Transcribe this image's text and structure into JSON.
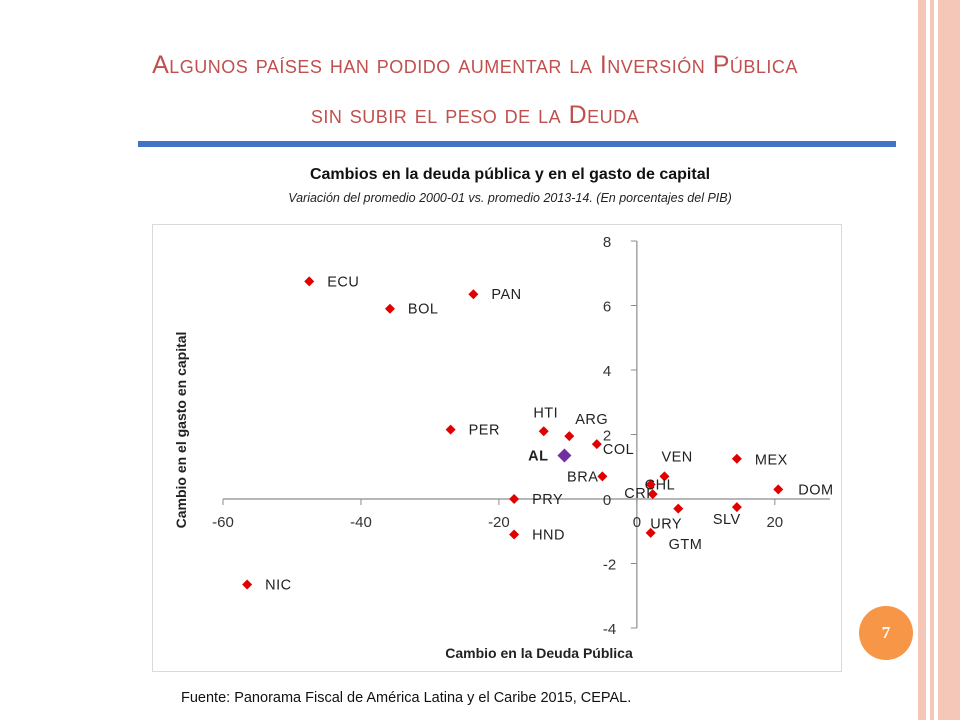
{
  "slide": {
    "title_line1": "Algunos  países han podido aumentar la Inversión Pública",
    "title_line2": "sin subir el peso de la Deuda",
    "page_number": "7",
    "source": "Fuente: Panorama Fiscal de América Latina y el Caribe 2015, CEPAL.",
    "title_color": "#c0504d",
    "rule_color": "#4472c4",
    "badge_color": "#f79646"
  },
  "chart_data": {
    "type": "scatter",
    "title": "Cambios en la deuda pública y en el gasto de capital",
    "subtitle": "Variación del promedio 2000-01 vs. promedio 2013-14. (En porcentajes del PIB)",
    "xlabel": "Cambio en la Deuda Pública",
    "ylabel": "Cambio en el gasto en capital",
    "xlim": [
      -60,
      28
    ],
    "ylim": [
      -4,
      8
    ],
    "xticks": [
      "-60",
      "-40",
      "-20",
      "0",
      "20"
    ],
    "yticks": [
      "-4",
      "-2",
      "0",
      "2",
      "4",
      "6",
      "8"
    ],
    "grid": false,
    "marker_color": "#e00000",
    "highlight_color": "#7030a0",
    "points": [
      {
        "label": "ECU",
        "x": -47.5,
        "y": 6.75
      },
      {
        "label": "BOL",
        "x": -35.8,
        "y": 5.9
      },
      {
        "label": "PAN",
        "x": -23.7,
        "y": 6.35
      },
      {
        "label": "PER",
        "x": -27.0,
        "y": 2.15
      },
      {
        "label": "HTI",
        "x": -13.5,
        "y": 2.1
      },
      {
        "label": "ARG",
        "x": -9.8,
        "y": 1.95
      },
      {
        "label": "COL",
        "x": -5.8,
        "y": 1.7
      },
      {
        "label": "AL",
        "x": -10.5,
        "y": 1.35
      },
      {
        "label": "BRA",
        "x": -5.0,
        "y": 0.7
      },
      {
        "label": "PRY",
        "x": -17.8,
        "y": 0.0
      },
      {
        "label": "HND",
        "x": -17.8,
        "y": -1.1
      },
      {
        "label": "NIC",
        "x": -56.5,
        "y": -2.65
      },
      {
        "label": "VEN",
        "x": 4.0,
        "y": 0.7
      },
      {
        "label": "CHL",
        "x": 2.0,
        "y": 0.45
      },
      {
        "label": "CRI",
        "x": 2.3,
        "y": 0.15
      },
      {
        "label": "URY",
        "x": 6.0,
        "y": -0.3
      },
      {
        "label": "GTM",
        "x": 2.0,
        "y": -1.05
      },
      {
        "label": "MEX",
        "x": 14.5,
        "y": 1.25
      },
      {
        "label": "SLV",
        "x": 14.5,
        "y": -0.25
      },
      {
        "label": "DOM",
        "x": 20.5,
        "y": 0.3
      }
    ]
  }
}
